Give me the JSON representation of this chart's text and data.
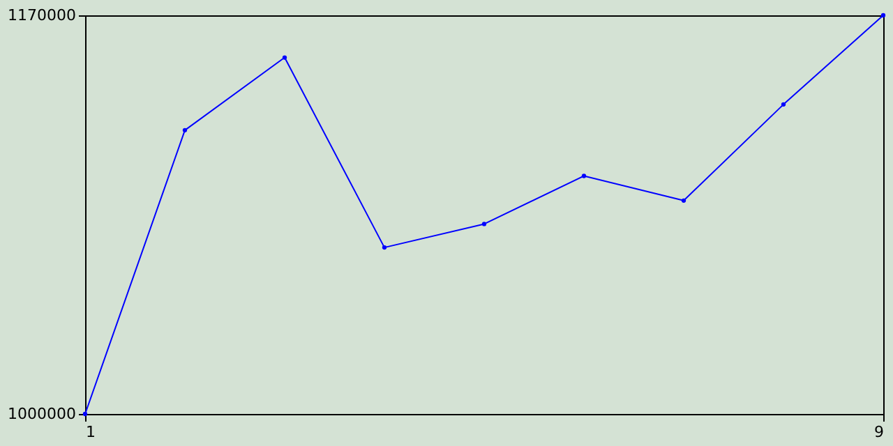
{
  "chart_data": {
    "type": "line",
    "x": [
      1,
      2,
      3,
      4,
      5,
      6,
      7,
      8,
      9
    ],
    "series": [
      {
        "color": "#0000ff",
        "values": [
          1000000,
          1121000,
          1152000,
          1071000,
          1081000,
          1101500,
          1091000,
          1132000,
          1170000
        ]
      }
    ],
    "xlim": [
      1,
      9
    ],
    "xticks": [
      1,
      9
    ],
    "ylim": [
      1000000,
      1170000
    ],
    "yticks": [
      1000000,
      1170000
    ],
    "grid": false,
    "marker": "circle",
    "line_style": "solid"
  }
}
